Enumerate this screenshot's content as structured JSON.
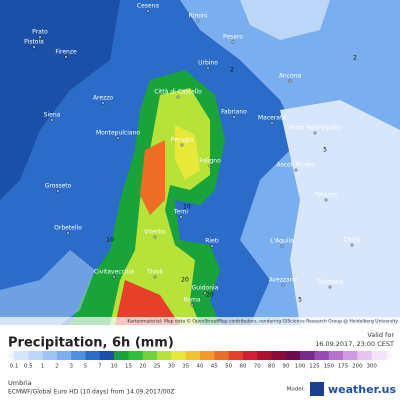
{
  "map": {
    "cities": [
      "Cesena",
      "Rimini",
      "Pesaro",
      "Pistoia",
      "Prato",
      "Firenze",
      "Urbino",
      "Ancona",
      "Arezzo",
      "Città di Castello",
      "Siena",
      "Fabriano",
      "Macerata",
      "Porto Sant'Elpidio",
      "Montepulciano",
      "Perugia",
      "Foligno",
      "Ascoli Piceno",
      "Grosseto",
      "Teramo",
      "Terni",
      "Orbetello",
      "Viterbo",
      "Rieti",
      "L'Aquila",
      "Chieti",
      "Civitavecchia",
      "Tivoli",
      "Guidonia",
      "Avezzano",
      "Sulmona",
      "Roma"
    ],
    "contour_labels": [
      "2",
      "2",
      "5",
      "10",
      "10",
      "20",
      "20",
      "5"
    ],
    "credit": "Kartenmaterial: Map data © OpenStreetMap contributors, rendering GIScience Research Group @ Heidelberg University"
  },
  "legend": {
    "title": "Precipitation, 6h (mm)",
    "labels": [
      0.1,
      0.5,
      1,
      2,
      3,
      5,
      7,
      10,
      15,
      20,
      25,
      30,
      35,
      40,
      45,
      50,
      60,
      70,
      80,
      90,
      100,
      125,
      150,
      175,
      200,
      300
    ],
    "colors": [
      "#d8e6fb",
      "#bcd6f8",
      "#9ec4f4",
      "#7aaeee",
      "#4f8fe0",
      "#2a6cc8",
      "#1b4fa8",
      "#1aa33a",
      "#2fbf3a",
      "#6fd43a",
      "#b7e23a",
      "#e8e83a",
      "#f2c330",
      "#f29a2a",
      "#ee6e26",
      "#e6402a",
      "#d21e2e",
      "#b0102e",
      "#8a0a38",
      "#6e0a50",
      "#7a2a8a",
      "#9a4ab4",
      "#b870d0",
      "#d09ae2",
      "#e4c4ee",
      "#f2e4f6"
    ]
  },
  "footer": {
    "valid_for": "Valid for",
    "valid_time": "16.09.2017, 23:00 CEST",
    "region": "Umbria",
    "model_run": "ECMWF/Global Euro HD (10 days) from 14.09.2017/00Z",
    "model_label": "Model:",
    "brand": "weather.us"
  }
}
